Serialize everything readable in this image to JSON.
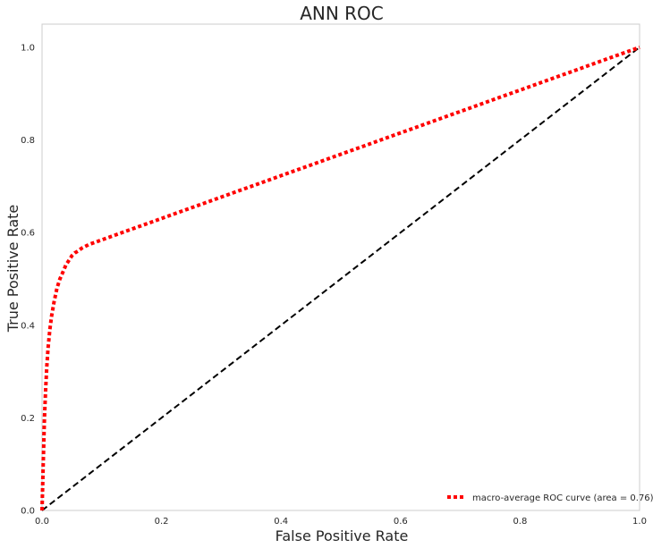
{
  "chart_data": {
    "type": "line",
    "title": "ANN ROC",
    "xlabel": "False Positive Rate",
    "ylabel": "True Positive Rate",
    "xlim": [
      0.0,
      1.0
    ],
    "ylim": [
      0.0,
      1.05
    ],
    "xticks": [
      "0.0",
      "0.2",
      "0.4",
      "0.6",
      "0.8",
      "1.0"
    ],
    "yticks": [
      "0.0",
      "0.2",
      "0.4",
      "0.6",
      "0.8",
      "1.0"
    ],
    "grid": false,
    "legend_position": "lower-right",
    "series": [
      {
        "name": "macro-average ROC curve (area = 0.76)",
        "color": "#ff0000",
        "style": "dotted",
        "x": [
          0.0,
          0.002,
          0.004,
          0.006,
          0.008,
          0.01,
          0.013,
          0.016,
          0.02,
          0.025,
          0.03,
          0.035,
          0.04,
          0.045,
          0.05,
          0.055,
          0.06,
          0.066,
          0.072,
          0.08,
          1.0
        ],
        "y": [
          0.0,
          0.1,
          0.2,
          0.26,
          0.31,
          0.35,
          0.39,
          0.42,
          0.45,
          0.48,
          0.5,
          0.515,
          0.53,
          0.54,
          0.55,
          0.556,
          0.56,
          0.566,
          0.57,
          0.575,
          1.0
        ]
      },
      {
        "name": "",
        "color": "#000000",
        "style": "dashed",
        "x": [
          0.0,
          1.0
        ],
        "y": [
          0.0,
          1.0
        ]
      }
    ]
  }
}
